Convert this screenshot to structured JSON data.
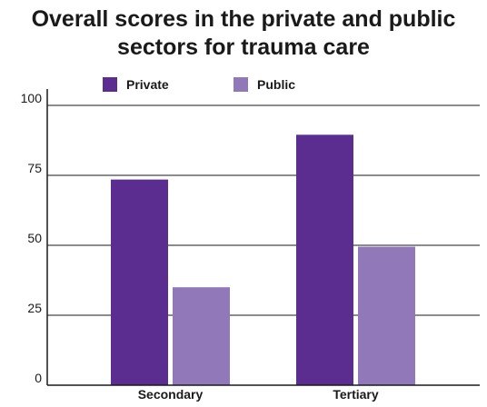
{
  "chart_data": {
    "type": "bar",
    "title": "Overall scores in the private and public sectors for trauma care",
    "title_line1": "Overall scores in the private and public",
    "title_line2": "sectors for trauma care",
    "categories": [
      "Secondary",
      "Tertiary"
    ],
    "series": [
      {
        "name": "Private",
        "values": [
          73.5,
          89.5
        ],
        "color": "#5c2d91"
      },
      {
        "name": "Public",
        "values": [
          35,
          49.5
        ],
        "color": "#9178b8"
      }
    ],
    "yticks": [
      0,
      25,
      50,
      75,
      100
    ],
    "ylim": [
      0,
      100
    ],
    "grid": true,
    "legend": "top"
  }
}
